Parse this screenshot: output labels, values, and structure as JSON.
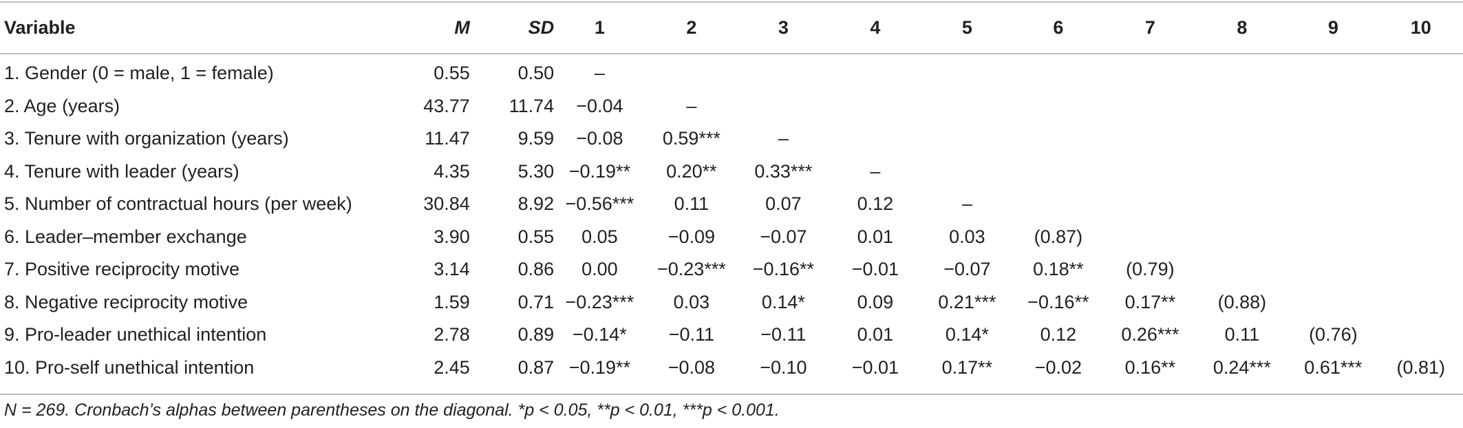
{
  "table": {
    "headers": [
      "Variable",
      "M",
      "SD",
      "1",
      "2",
      "3",
      "4",
      "5",
      "6",
      "7",
      "8",
      "9",
      "10"
    ],
    "rows": [
      {
        "variable": "1. Gender (0 = male, 1 = female)",
        "m": "0.55",
        "sd": "0.50",
        "c": [
          "–",
          "",
          "",
          "",
          "",
          "",
          "",
          "",
          "",
          ""
        ]
      },
      {
        "variable": "2. Age (years)",
        "m": "43.77",
        "sd": "11.74",
        "c": [
          "−0.04",
          "–",
          "",
          "",
          "",
          "",
          "",
          "",
          "",
          ""
        ]
      },
      {
        "variable": "3. Tenure with organization (years)",
        "m": "11.47",
        "sd": "9.59",
        "c": [
          "−0.08",
          "0.59***",
          "–",
          "",
          "",
          "",
          "",
          "",
          "",
          ""
        ]
      },
      {
        "variable": "4. Tenure with leader (years)",
        "m": "4.35",
        "sd": "5.30",
        "c": [
          "−0.19**",
          "0.20**",
          "0.33***",
          "–",
          "",
          "",
          "",
          "",
          "",
          ""
        ]
      },
      {
        "variable": "5. Number of contractual hours (per week)",
        "m": "30.84",
        "sd": "8.92",
        "c": [
          "−0.56***",
          "0.11",
          "0.07",
          "0.12",
          "–",
          "",
          "",
          "",
          "",
          ""
        ]
      },
      {
        "variable": "6. Leader–member exchange",
        "m": "3.90",
        "sd": "0.55",
        "c": [
          "0.05",
          "−0.09",
          "−0.07",
          "0.01",
          "0.03",
          "(0.87)",
          "",
          "",
          "",
          ""
        ]
      },
      {
        "variable": "7. Positive reciprocity motive",
        "m": "3.14",
        "sd": "0.86",
        "c": [
          "0.00",
          "−0.23***",
          "−0.16**",
          "−0.01",
          "−0.07",
          "0.18**",
          "(0.79)",
          "",
          "",
          ""
        ]
      },
      {
        "variable": "8. Negative reciprocity motive",
        "m": "1.59",
        "sd": "0.71",
        "c": [
          "−0.23***",
          "0.03",
          "0.14*",
          "0.09",
          "0.21***",
          "−0.16**",
          "0.17**",
          "(0.88)",
          "",
          ""
        ]
      },
      {
        "variable": "9. Pro-leader unethical intention",
        "m": "2.78",
        "sd": "0.89",
        "c": [
          "−0.14*",
          "−0.11",
          "−0.11",
          "0.01",
          "0.14*",
          "0.12",
          "0.26***",
          "0.11",
          "(0.76)",
          ""
        ]
      },
      {
        "variable": "10. Pro-self unethical intention",
        "m": "2.45",
        "sd": "0.87",
        "c": [
          "−0.19**",
          "−0.08",
          "−0.10",
          "−0.01",
          "0.17**",
          "−0.02",
          "0.16**",
          "0.24***",
          "0.61***",
          "(0.81)"
        ]
      }
    ]
  },
  "footnote": "N = 269. Cronbach’s alphas between parentheses on the diagonal. *p < 0.05, **p < 0.01, ***p < 0.001."
}
